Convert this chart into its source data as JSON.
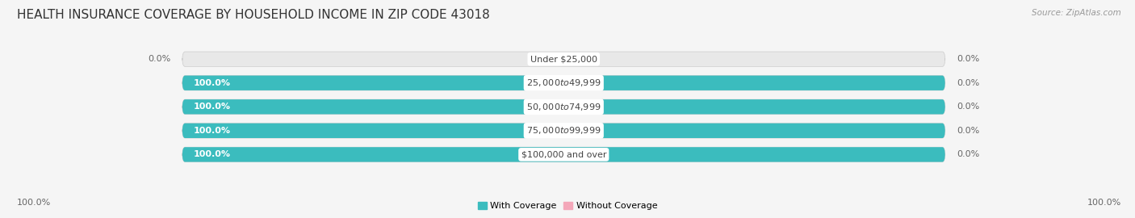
{
  "title": "HEALTH INSURANCE COVERAGE BY HOUSEHOLD INCOME IN ZIP CODE 43018",
  "source": "Source: ZipAtlas.com",
  "categories": [
    "Under $25,000",
    "$25,000 to $49,999",
    "$50,000 to $74,999",
    "$75,000 to $99,999",
    "$100,000 and over"
  ],
  "with_coverage": [
    0.0,
    100.0,
    100.0,
    100.0,
    100.0
  ],
  "without_coverage": [
    0.0,
    0.0,
    0.0,
    0.0,
    0.0
  ],
  "color_with": "#3BBCBE",
  "color_without": "#F4A7B9",
  "bar_bg_color": "#e8e8e8",
  "bar_border_color": "#cccccc",
  "background_color": "#f5f5f5",
  "title_fontsize": 11,
  "source_fontsize": 7.5,
  "label_fontsize": 8,
  "inner_label_fontsize": 8,
  "bar_height": 0.62,
  "figsize": [
    14.06,
    2.7
  ],
  "total_width": 100.0
}
